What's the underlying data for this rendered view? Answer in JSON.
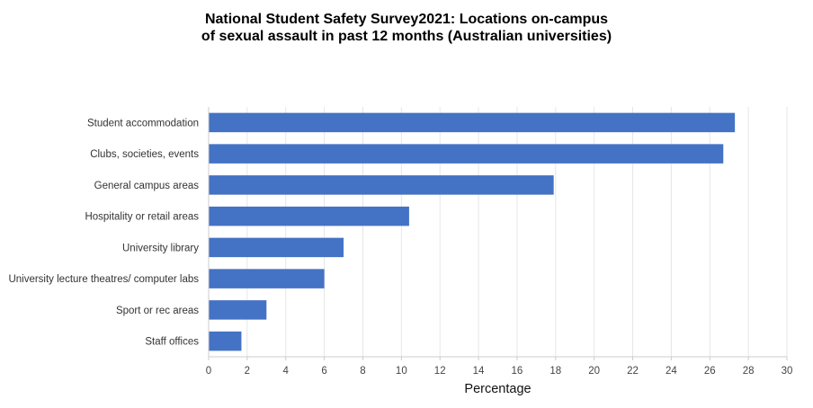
{
  "chart_data": {
    "type": "bar",
    "orientation": "horizontal",
    "title_lines": [
      "National Student Safety Survey2021: Locations on-campus",
      "of sexual assault in past 12 months (Australian universities)"
    ],
    "xlabel": "Percentage",
    "ylabel": "",
    "xlim": [
      0,
      30
    ],
    "xticks": [
      "0",
      "2",
      "4",
      "6",
      "8",
      "10",
      "12",
      "14",
      "16",
      "18",
      "20",
      "22",
      "24",
      "26",
      "28",
      "30"
    ],
    "grid": true,
    "legend": "none",
    "bar_color": "#4472C4",
    "categories": [
      "Student accommodation",
      "Clubs, societies, events",
      "General campus areas",
      "Hospitality or retail areas",
      "University library",
      "University lecture theatres/ computer labs",
      "Sport or rec areas",
      "Staff offices"
    ],
    "values": [
      27.3,
      26.7,
      17.9,
      10.4,
      7.0,
      6.0,
      3.0,
      1.7
    ]
  }
}
